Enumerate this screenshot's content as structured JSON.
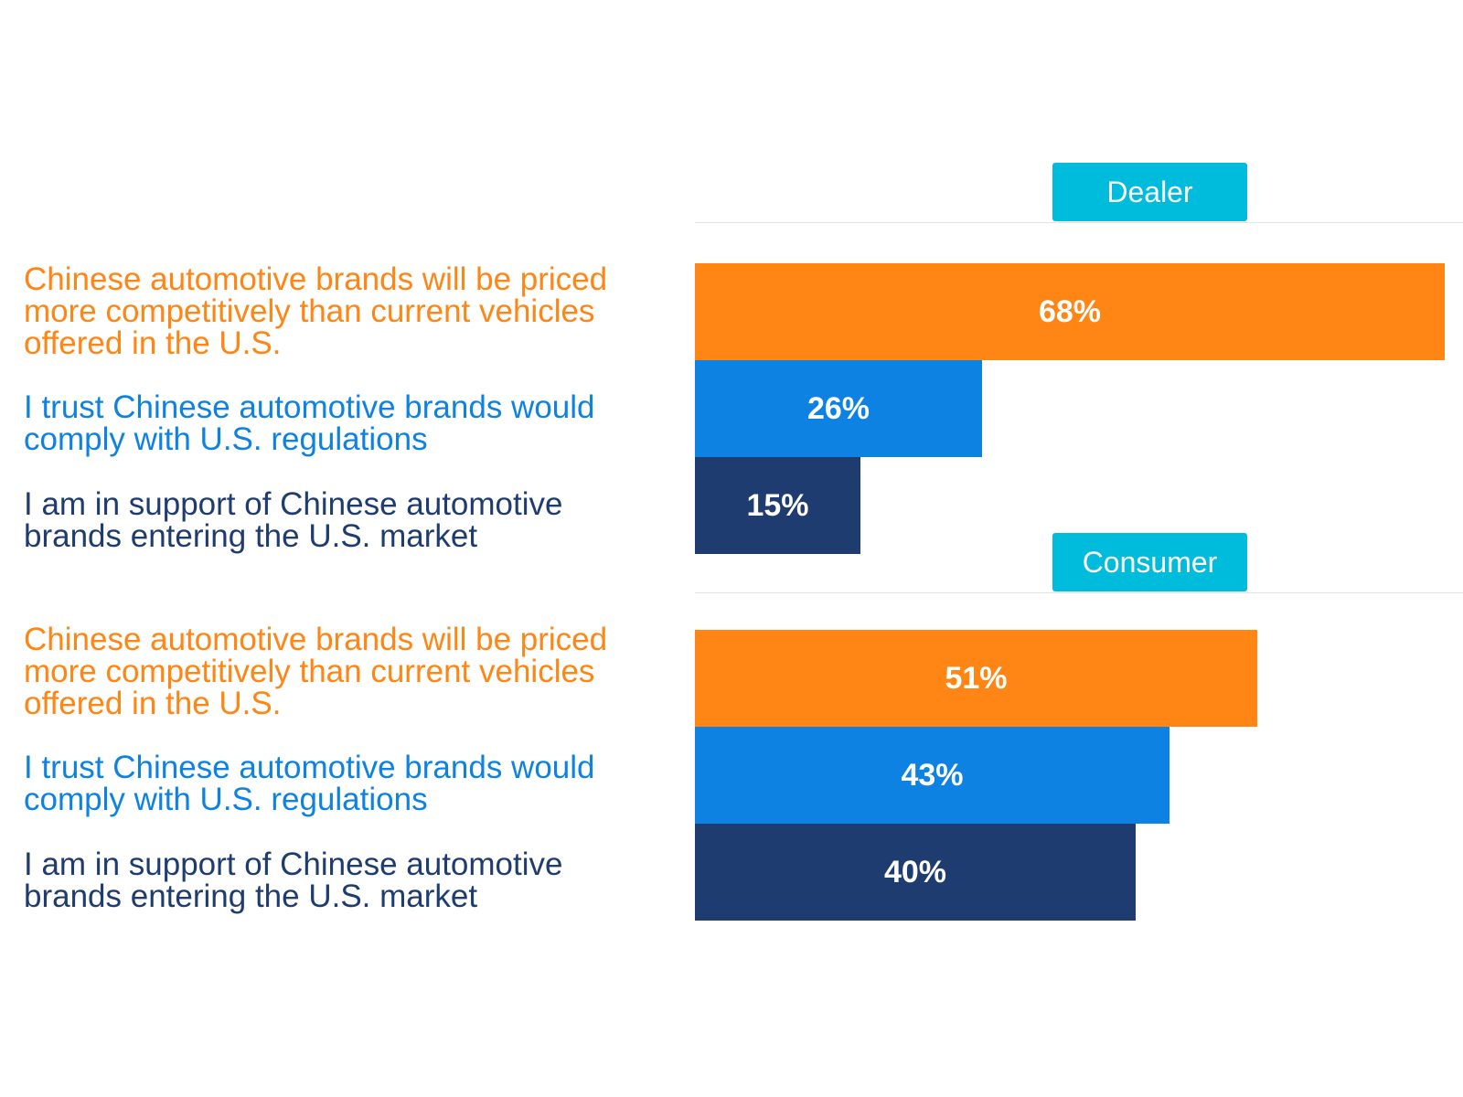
{
  "chart_data": {
    "type": "bar",
    "orientation": "horizontal",
    "title": "",
    "xlim": [
      0,
      68
    ],
    "categories": [
      "Chinese automotive brands will be priced more competitively than current vehicles offered in the U.S.",
      "I trust Chinese automotive brands would comply with U.S. regulations",
      "I am in support of Chinese automotive brands entering the U.S. market"
    ],
    "category_colors": [
      "#ff8514",
      "#0d82e2",
      "#1f3c70"
    ],
    "panels": [
      {
        "name": "Dealer",
        "values": [
          68,
          26,
          15
        ],
        "labels": [
          "68%",
          "26%",
          "15%"
        ]
      },
      {
        "name": "Consumer",
        "values": [
          51,
          43,
          40
        ],
        "labels": [
          "51%",
          "43%",
          "40%"
        ]
      }
    ]
  }
}
